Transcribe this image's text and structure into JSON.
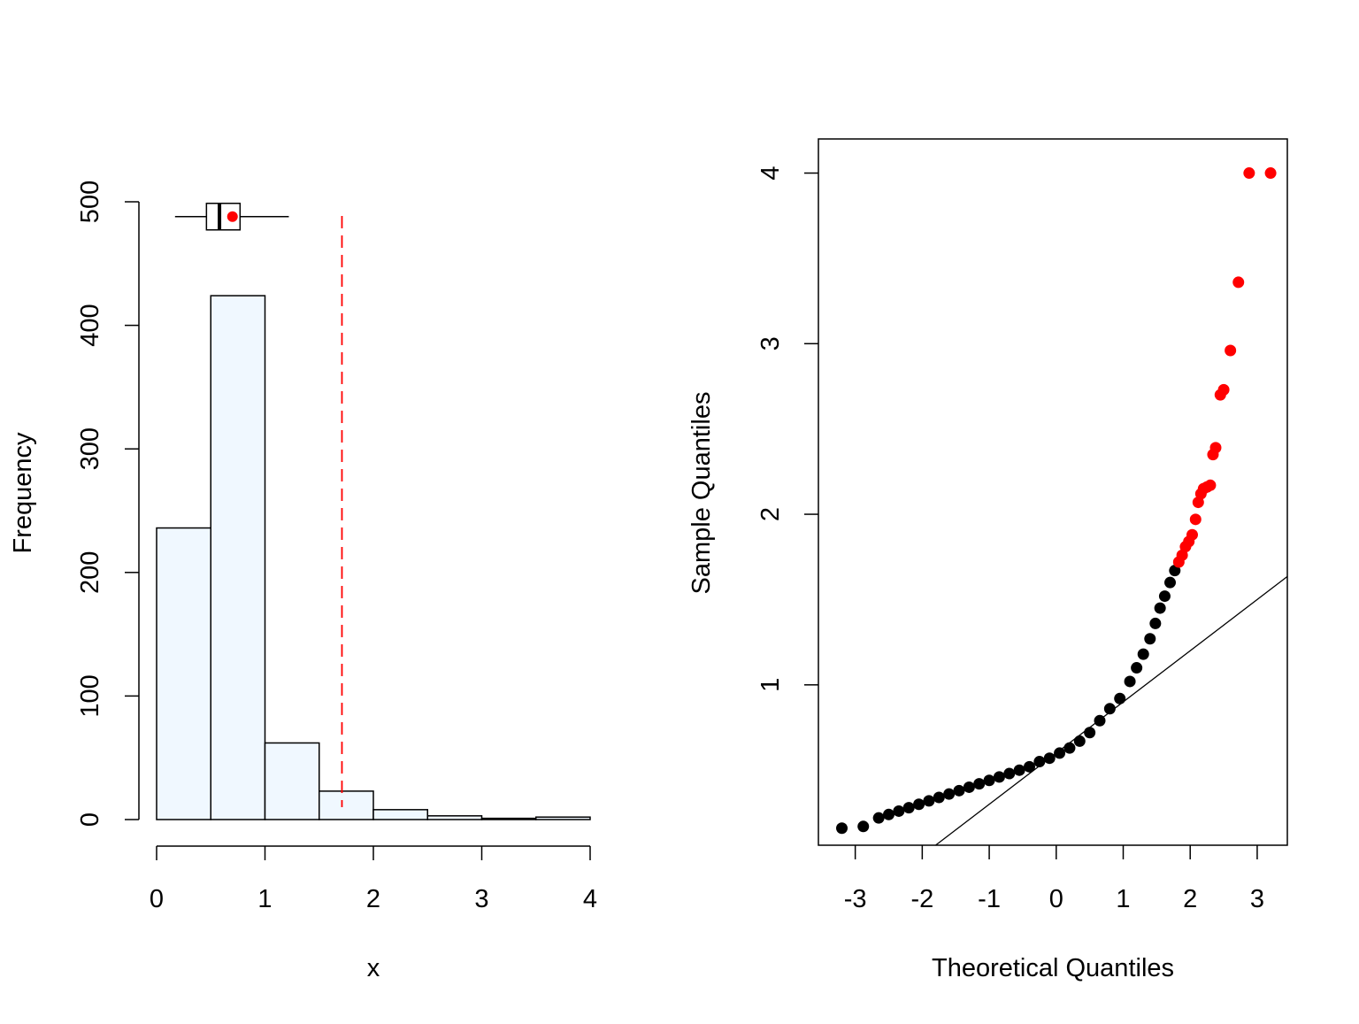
{
  "colors": {
    "bar_fill": "#f0f8ff",
    "outline": "#000000",
    "highlight": "#ff0000",
    "point": "#000000"
  },
  "chart_data": [
    {
      "type": "bar",
      "title": "",
      "xlabel": "x",
      "ylabel": "Frequency",
      "bins": [
        [
          0,
          0.5
        ],
        [
          0.5,
          1
        ],
        [
          1,
          1.5
        ],
        [
          1.5,
          2
        ],
        [
          2,
          2.5
        ],
        [
          2.5,
          3
        ],
        [
          3,
          3.5
        ],
        [
          3.5,
          4
        ]
      ],
      "values": [
        236,
        424,
        62,
        23,
        8,
        3,
        1,
        2
      ],
      "xlim": [
        0,
        4
      ],
      "ylim": [
        0,
        500
      ],
      "x_ticks": [
        "0",
        "1",
        "2",
        "3",
        "4"
      ],
      "y_ticks": [
        "0",
        "100",
        "200",
        "300",
        "400",
        "500"
      ],
      "boxplot": {
        "min": 0.17,
        "q1": 0.46,
        "median": 0.58,
        "q3": 0.77,
        "max": 1.22,
        "mean": 0.7,
        "level": 488
      },
      "threshold_line": {
        "x": 1.71,
        "style": "dashed",
        "color": "#ff0000"
      }
    },
    {
      "type": "scatter",
      "title": "",
      "xlabel": "Theoretical Quantiles",
      "ylabel": "Sample Quantiles",
      "xlim": [
        -3.55,
        3.45
      ],
      "ylim": [
        0.06,
        4.2
      ],
      "x_ticks": [
        "-3",
        "-2",
        "-1",
        "0",
        "1",
        "2",
        "3"
      ],
      "y_ticks": [
        "1",
        "2",
        "3",
        "4"
      ],
      "reference_line": {
        "slope": 0.3,
        "intercept": 0.6
      },
      "series": [
        {
          "color": "#000000",
          "points": [
            [
              -3.2,
              0.16
            ],
            [
              -2.88,
              0.17
            ],
            [
              -2.65,
              0.22
            ],
            [
              -2.5,
              0.24
            ],
            [
              -2.35,
              0.26
            ],
            [
              -2.2,
              0.28
            ],
            [
              -2.05,
              0.3
            ],
            [
              -1.9,
              0.32
            ],
            [
              -1.75,
              0.34
            ],
            [
              -1.6,
              0.36
            ],
            [
              -1.45,
              0.38
            ],
            [
              -1.3,
              0.4
            ],
            [
              -1.15,
              0.42
            ],
            [
              -1.0,
              0.44
            ],
            [
              -0.85,
              0.46
            ],
            [
              -0.7,
              0.48
            ],
            [
              -0.55,
              0.5
            ],
            [
              -0.4,
              0.52
            ],
            [
              -0.25,
              0.55
            ],
            [
              -0.1,
              0.57
            ],
            [
              0.05,
              0.6
            ],
            [
              0.2,
              0.63
            ],
            [
              0.35,
              0.67
            ],
            [
              0.5,
              0.72
            ],
            [
              0.65,
              0.79
            ],
            [
              0.8,
              0.86
            ],
            [
              0.95,
              0.92
            ],
            [
              1.1,
              1.02
            ],
            [
              1.2,
              1.1
            ],
            [
              1.3,
              1.18
            ],
            [
              1.4,
              1.27
            ],
            [
              1.48,
              1.36
            ],
            [
              1.55,
              1.45
            ],
            [
              1.62,
              1.52
            ],
            [
              1.7,
              1.6
            ],
            [
              1.77,
              1.67
            ]
          ]
        },
        {
          "color": "#ff0000",
          "points": [
            [
              1.83,
              1.72
            ],
            [
              1.88,
              1.76
            ],
            [
              1.93,
              1.81
            ],
            [
              1.98,
              1.84
            ],
            [
              2.03,
              1.88
            ],
            [
              2.08,
              1.97
            ],
            [
              2.12,
              2.07
            ],
            [
              2.16,
              2.12
            ],
            [
              2.2,
              2.15
            ],
            [
              2.25,
              2.16
            ],
            [
              2.3,
              2.17
            ],
            [
              2.34,
              2.35
            ],
            [
              2.38,
              2.39
            ],
            [
              2.45,
              2.7
            ],
            [
              2.5,
              2.73
            ],
            [
              2.6,
              2.96
            ],
            [
              2.72,
              3.36
            ],
            [
              2.88,
              4.0
            ],
            [
              3.2,
              4.0
            ]
          ]
        }
      ]
    }
  ]
}
